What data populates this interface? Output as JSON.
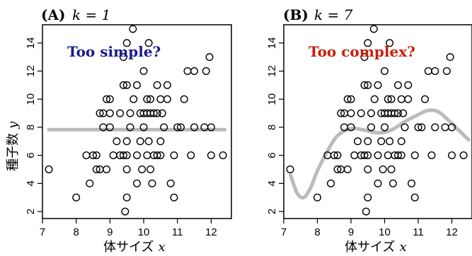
{
  "chart_data": [
    {
      "type": "scatter",
      "panel_letter": "(A)",
      "panel_param": "k = 1",
      "annotation": "Too simple?",
      "annotation_color": "#1a1a8c",
      "xlabel": "体サイズ",
      "xlabel_var": "x",
      "ylabel": "種子数",
      "ylabel_var": "y",
      "xlim": [
        7.0,
        12.6
      ],
      "ylim": [
        1.5,
        15.3
      ],
      "xticks": [
        7,
        8,
        9,
        10,
        11,
        12
      ],
      "yticks": [
        2,
        4,
        6,
        8,
        10,
        12,
        14
      ],
      "marker": "open-circle",
      "fit_line_color": "#bbbbbb",
      "fit_x": [
        7.19,
        12.4
      ],
      "fit_y": [
        7.83,
        7.83
      ],
      "points": [
        [
          7.19,
          5
        ],
        [
          8.0,
          3
        ],
        [
          8.4,
          4
        ],
        [
          8.3,
          6
        ],
        [
          8.5,
          6
        ],
        [
          8.6,
          5
        ],
        [
          8.6,
          6
        ],
        [
          8.7,
          5
        ],
        [
          8.8,
          8
        ],
        [
          8.8,
          9
        ],
        [
          8.9,
          10
        ],
        [
          8.9,
          5
        ],
        [
          9.0,
          10
        ],
        [
          9.0,
          8
        ],
        [
          9.1,
          6
        ],
        [
          9.2,
          7
        ],
        [
          9.3,
          6
        ],
        [
          9.4,
          6
        ],
        [
          9.5,
          6
        ],
        [
          9.4,
          11
        ],
        [
          9.5,
          11
        ],
        [
          9.4,
          13
        ],
        [
          9.5,
          3
        ],
        [
          9.45,
          2
        ],
        [
          9.5,
          7
        ],
        [
          9.5,
          14
        ],
        [
          9.5,
          5
        ],
        [
          9.6,
          8
        ],
        [
          9.6,
          9
        ],
        [
          9.7,
          10
        ],
        [
          9.68,
          15
        ],
        [
          9.8,
          4
        ],
        [
          9.8,
          6
        ],
        [
          9.8,
          11
        ],
        [
          9.9,
          9
        ],
        [
          9.9,
          7
        ],
        [
          9.95,
          5
        ],
        [
          10.0,
          9
        ],
        [
          10.0,
          12
        ],
        [
          10.0,
          8
        ],
        [
          10.1,
          9
        ],
        [
          10.1,
          10
        ],
        [
          10.15,
          14
        ],
        [
          10.1,
          6
        ],
        [
          10.15,
          7
        ],
        [
          10.2,
          9
        ],
        [
          10.2,
          10
        ],
        [
          10.2,
          5
        ],
        [
          10.25,
          4
        ],
        [
          10.3,
          9
        ],
        [
          10.3,
          6
        ],
        [
          10.4,
          9
        ],
        [
          10.4,
          6
        ],
        [
          10.4,
          11
        ],
        [
          10.5,
          10
        ],
        [
          10.5,
          7
        ],
        [
          10.5,
          6
        ],
        [
          10.55,
          9
        ],
        [
          10.6,
          8
        ],
        [
          10.7,
          10
        ],
        [
          10.7,
          11
        ],
        [
          10.8,
          4
        ],
        [
          10.9,
          3
        ],
        [
          10.9,
          6
        ],
        [
          11.0,
          8
        ],
        [
          11.1,
          8
        ],
        [
          11.2,
          10
        ],
        [
          11.3,
          12
        ],
        [
          11.4,
          6
        ],
        [
          11.5,
          12
        ],
        [
          11.5,
          8
        ],
        [
          11.8,
          8
        ],
        [
          11.85,
          12
        ],
        [
          11.95,
          13
        ],
        [
          12.0,
          8
        ],
        [
          12.0,
          6
        ],
        [
          12.35,
          6
        ],
        [
          9.3,
          9
        ],
        [
          9.0,
          9
        ],
        [
          8.7,
          9
        ]
      ]
    },
    {
      "type": "scatter",
      "panel_letter": "(B)",
      "panel_param": "k = 7",
      "annotation": "Too complex?",
      "annotation_color": "#c81e0a",
      "xlabel": "体サイズ",
      "xlabel_var": "x",
      "xlim": [
        7.0,
        12.6
      ],
      "ylim": [
        1.5,
        15.3
      ],
      "xticks": [
        7,
        8,
        9,
        10,
        11,
        12
      ],
      "yticks": [
        2,
        4,
        6,
        8,
        10,
        12,
        14
      ],
      "marker": "open-circle",
      "fit_line_color": "#bbbbbb",
      "fit_x": [
        7.2,
        7.4,
        7.6,
        7.8,
        8.0,
        8.3,
        8.6,
        9.0,
        9.4,
        9.8,
        10.2,
        10.6,
        11.0,
        11.3,
        11.6,
        11.9,
        12.2,
        12.5
      ],
      "fit_y": [
        4.6,
        3.3,
        3.0,
        3.7,
        4.9,
        6.3,
        7.4,
        7.9,
        7.8,
        7.6,
        7.8,
        8.4,
        8.9,
        9.2,
        9.1,
        8.5,
        7.8,
        7.1
      ],
      "points": [
        [
          7.19,
          5
        ],
        [
          8.0,
          3
        ],
        [
          8.4,
          4
        ],
        [
          8.3,
          6
        ],
        [
          8.5,
          6
        ],
        [
          8.6,
          5
        ],
        [
          8.6,
          6
        ],
        [
          8.7,
          5
        ],
        [
          8.8,
          8
        ],
        [
          8.8,
          9
        ],
        [
          8.9,
          10
        ],
        [
          8.9,
          5
        ],
        [
          9.0,
          10
        ],
        [
          9.0,
          8
        ],
        [
          9.1,
          6
        ],
        [
          9.2,
          7
        ],
        [
          9.3,
          6
        ],
        [
          9.4,
          6
        ],
        [
          9.5,
          6
        ],
        [
          9.4,
          11
        ],
        [
          9.5,
          11
        ],
        [
          9.4,
          13
        ],
        [
          9.5,
          3
        ],
        [
          9.45,
          2
        ],
        [
          9.5,
          7
        ],
        [
          9.5,
          14
        ],
        [
          9.5,
          5
        ],
        [
          9.6,
          8
        ],
        [
          9.6,
          9
        ],
        [
          9.7,
          10
        ],
        [
          9.68,
          15
        ],
        [
          9.8,
          4
        ],
        [
          9.8,
          6
        ],
        [
          9.8,
          11
        ],
        [
          9.9,
          9
        ],
        [
          9.9,
          7
        ],
        [
          9.95,
          5
        ],
        [
          10.0,
          9
        ],
        [
          10.0,
          12
        ],
        [
          10.0,
          8
        ],
        [
          10.1,
          9
        ],
        [
          10.1,
          10
        ],
        [
          10.15,
          14
        ],
        [
          10.1,
          6
        ],
        [
          10.15,
          7
        ],
        [
          10.2,
          9
        ],
        [
          10.2,
          10
        ],
        [
          10.2,
          5
        ],
        [
          10.25,
          4
        ],
        [
          10.3,
          9
        ],
        [
          10.3,
          6
        ],
        [
          10.4,
          9
        ],
        [
          10.4,
          6
        ],
        [
          10.4,
          11
        ],
        [
          10.5,
          10
        ],
        [
          10.5,
          7
        ],
        [
          10.5,
          6
        ],
        [
          10.55,
          9
        ],
        [
          10.6,
          8
        ],
        [
          10.7,
          10
        ],
        [
          10.7,
          11
        ],
        [
          10.8,
          4
        ],
        [
          10.9,
          3
        ],
        [
          10.9,
          6
        ],
        [
          11.0,
          8
        ],
        [
          11.1,
          8
        ],
        [
          11.2,
          10
        ],
        [
          11.3,
          12
        ],
        [
          11.4,
          6
        ],
        [
          11.5,
          12
        ],
        [
          11.5,
          8
        ],
        [
          11.8,
          8
        ],
        [
          11.85,
          12
        ],
        [
          11.95,
          13
        ],
        [
          12.0,
          8
        ],
        [
          12.0,
          6
        ],
        [
          12.35,
          6
        ],
        [
          9.3,
          9
        ],
        [
          9.0,
          9
        ],
        [
          8.7,
          9
        ]
      ]
    }
  ]
}
